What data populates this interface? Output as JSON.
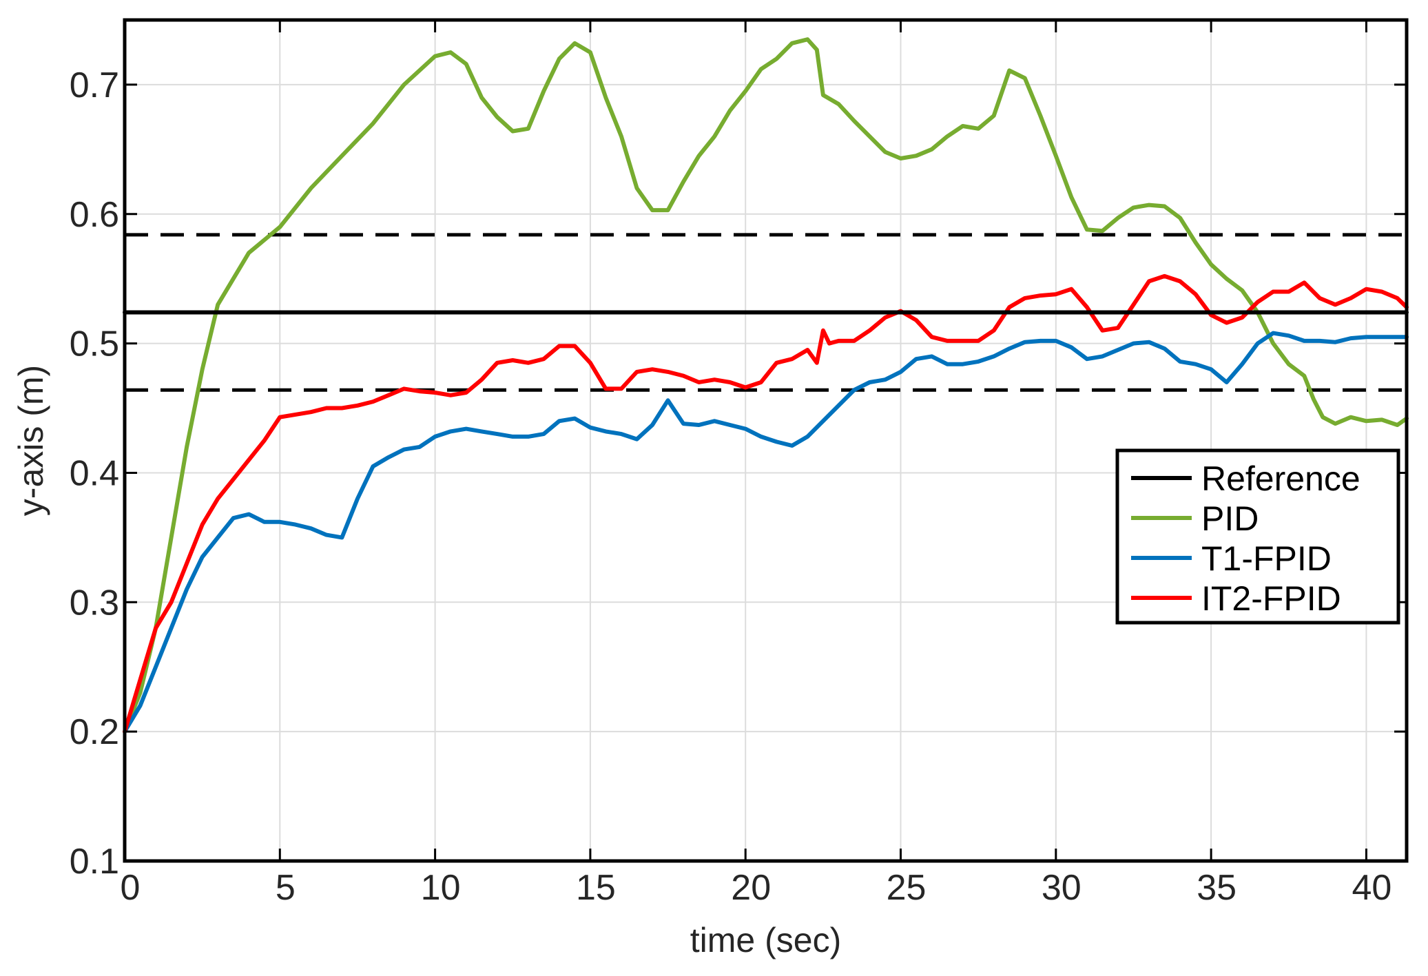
{
  "chart_data": {
    "type": "line",
    "xlabel": "time (sec)",
    "ylabel": "y-axis (m)",
    "xlim": [
      0,
      41.3
    ],
    "ylim": [
      0.1,
      0.75
    ],
    "xticks": [
      0,
      5,
      10,
      15,
      20,
      25,
      30,
      35,
      40
    ],
    "yticks": [
      0.1,
      0.2,
      0.3,
      0.4,
      0.5,
      0.6,
      0.7
    ],
    "xtick_labels": [
      "0",
      "5",
      "10",
      "15",
      "20",
      "25",
      "30",
      "35",
      "40"
    ],
    "ytick_labels": [
      "0.1",
      "0.2",
      "0.3",
      "0.4",
      "0.5",
      "0.6",
      "0.7"
    ],
    "grid": true,
    "legend_position": "right",
    "series": [
      {
        "name": "Reference",
        "color": "#000000",
        "x": [
          0,
          41.3
        ],
        "y": [
          0.524,
          0.524
        ]
      },
      {
        "name": "PID",
        "color": "#77ac30",
        "x": [
          0,
          0.5,
          1,
          1.5,
          2,
          2.5,
          3,
          3.5,
          4,
          5,
          6,
          7,
          8,
          9,
          10,
          10.5,
          11,
          11.5,
          12,
          12.5,
          13,
          13.5,
          14,
          14.5,
          15,
          15.5,
          16,
          16.5,
          17,
          17.5,
          18,
          18.5,
          19,
          19.5,
          20,
          20.5,
          21,
          21.5,
          22,
          22.3,
          22.5,
          23,
          23.5,
          24,
          24.5,
          25,
          25.5,
          26,
          26.5,
          27,
          27.5,
          28,
          28.5,
          29,
          29.5,
          30,
          30.5,
          31,
          31.5,
          32,
          32.5,
          33,
          33.5,
          34,
          34.5,
          35,
          35.5,
          36,
          36.5,
          37,
          37.5,
          38,
          38.3,
          38.6,
          39,
          39.5,
          40,
          40.5,
          41,
          41.3
        ],
        "y": [
          0.2,
          0.23,
          0.28,
          0.35,
          0.42,
          0.48,
          0.53,
          0.55,
          0.57,
          0.59,
          0.62,
          0.645,
          0.67,
          0.7,
          0.722,
          0.725,
          0.716,
          0.69,
          0.675,
          0.664,
          0.666,
          0.695,
          0.72,
          0.732,
          0.725,
          0.69,
          0.66,
          0.62,
          0.603,
          0.603,
          0.625,
          0.645,
          0.66,
          0.68,
          0.695,
          0.712,
          0.72,
          0.732,
          0.735,
          0.727,
          0.692,
          0.685,
          0.672,
          0.66,
          0.648,
          0.643,
          0.645,
          0.65,
          0.66,
          0.668,
          0.666,
          0.676,
          0.711,
          0.705,
          0.676,
          0.645,
          0.613,
          0.588,
          0.587,
          0.597,
          0.605,
          0.607,
          0.606,
          0.597,
          0.578,
          0.561,
          0.55,
          0.541,
          0.524,
          0.5,
          0.484,
          0.475,
          0.457,
          0.443,
          0.438,
          0.443,
          0.44,
          0.441,
          0.437,
          0.442
        ]
      },
      {
        "name": "T1-FPID",
        "color": "#0072bd",
        "x": [
          0,
          0.5,
          1,
          1.5,
          2,
          2.5,
          3,
          3.5,
          4,
          4.5,
          5,
          5.5,
          6,
          6.5,
          7,
          7.5,
          8,
          8.5,
          9,
          9.5,
          10,
          10.5,
          11,
          11.5,
          12,
          12.5,
          13,
          13.5,
          14,
          14.5,
          15,
          15.5,
          16,
          16.5,
          17,
          17.5,
          18,
          18.5,
          19,
          19.5,
          20,
          20.5,
          21,
          21.5,
          22,
          22.5,
          23,
          23.5,
          24,
          24.5,
          25,
          25.5,
          26,
          26.5,
          27,
          27.5,
          28,
          28.5,
          29,
          29.5,
          30,
          30.5,
          31,
          31.5,
          32,
          32.5,
          33,
          33.5,
          34,
          34.5,
          35,
          35.5,
          36,
          36.5,
          37,
          37.5,
          38,
          38.5,
          39,
          39.5,
          40,
          40.5,
          41,
          41.3
        ],
        "y": [
          0.2,
          0.22,
          0.25,
          0.28,
          0.31,
          0.335,
          0.35,
          0.365,
          0.368,
          0.362,
          0.362,
          0.36,
          0.357,
          0.352,
          0.35,
          0.38,
          0.405,
          0.412,
          0.418,
          0.42,
          0.428,
          0.432,
          0.434,
          0.432,
          0.43,
          0.428,
          0.428,
          0.43,
          0.44,
          0.442,
          0.435,
          0.432,
          0.43,
          0.426,
          0.437,
          0.456,
          0.438,
          0.437,
          0.44,
          0.437,
          0.434,
          0.428,
          0.424,
          0.421,
          0.428,
          0.44,
          0.452,
          0.464,
          0.47,
          0.472,
          0.478,
          0.488,
          0.49,
          0.484,
          0.484,
          0.486,
          0.49,
          0.496,
          0.501,
          0.502,
          0.502,
          0.497,
          0.488,
          0.49,
          0.495,
          0.5,
          0.501,
          0.496,
          0.486,
          0.484,
          0.48,
          0.47,
          0.484,
          0.5,
          0.508,
          0.506,
          0.502,
          0.502,
          0.501,
          0.504,
          0.505,
          0.505,
          0.505,
          0.505
        ]
      },
      {
        "name": "IT2-FPID",
        "color": "#ff0000",
        "x": [
          0,
          0.5,
          1,
          1.5,
          2,
          2.5,
          3,
          3.5,
          4,
          4.5,
          5,
          5.5,
          6,
          6.5,
          7,
          7.5,
          8,
          8.5,
          9,
          9.5,
          10,
          10.5,
          11,
          11.5,
          12,
          12.5,
          13,
          13.5,
          14,
          14.5,
          15,
          15.5,
          16,
          16.5,
          17,
          17.5,
          18,
          18.5,
          19,
          19.5,
          20,
          20.5,
          21,
          21.5,
          22,
          22.3,
          22.5,
          22.7,
          23,
          23.5,
          24,
          24.5,
          25,
          25.5,
          26,
          26.5,
          27,
          27.5,
          28,
          28.5,
          29,
          29.5,
          30,
          30.5,
          31,
          31.5,
          32,
          32.5,
          33,
          33.5,
          34,
          34.5,
          35,
          35.5,
          36,
          36.5,
          37,
          37.5,
          38,
          38.5,
          39,
          39.5,
          40,
          40.5,
          41,
          41.3
        ],
        "y": [
          0.2,
          0.24,
          0.28,
          0.3,
          0.33,
          0.36,
          0.38,
          0.395,
          0.41,
          0.425,
          0.443,
          0.445,
          0.447,
          0.45,
          0.45,
          0.452,
          0.455,
          0.46,
          0.465,
          0.463,
          0.462,
          0.46,
          0.462,
          0.472,
          0.485,
          0.487,
          0.485,
          0.488,
          0.498,
          0.498,
          0.485,
          0.465,
          0.465,
          0.478,
          0.48,
          0.478,
          0.475,
          0.47,
          0.472,
          0.47,
          0.466,
          0.47,
          0.485,
          0.488,
          0.495,
          0.485,
          0.51,
          0.5,
          0.502,
          0.502,
          0.51,
          0.52,
          0.525,
          0.518,
          0.505,
          0.502,
          0.502,
          0.502,
          0.51,
          0.528,
          0.535,
          0.537,
          0.538,
          0.542,
          0.528,
          0.51,
          0.512,
          0.53,
          0.548,
          0.552,
          0.548,
          0.538,
          0.522,
          0.516,
          0.52,
          0.532,
          0.54,
          0.54,
          0.547,
          0.535,
          0.53,
          0.535,
          0.542,
          0.54,
          0.535,
          0.528
        ]
      }
    ],
    "dashed_bounds": [
      {
        "color": "#000000",
        "y": 0.584,
        "x": [
          0,
          41.3
        ]
      },
      {
        "color": "#000000",
        "y": 0.464,
        "x": [
          0,
          41.3
        ]
      }
    ]
  }
}
